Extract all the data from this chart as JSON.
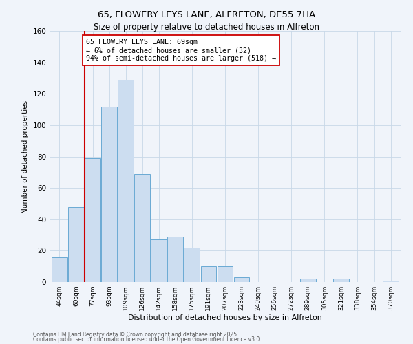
{
  "title": "65, FLOWERY LEYS LANE, ALFRETON, DE55 7HA",
  "subtitle": "Size of property relative to detached houses in Alfreton",
  "xlabel": "Distribution of detached houses by size in Alfreton",
  "ylabel": "Number of detached properties",
  "bar_labels": [
    "44sqm",
    "60sqm",
    "77sqm",
    "93sqm",
    "109sqm",
    "126sqm",
    "142sqm",
    "158sqm",
    "175sqm",
    "191sqm",
    "207sqm",
    "223sqm",
    "240sqm",
    "256sqm",
    "272sqm",
    "289sqm",
    "305sqm",
    "321sqm",
    "338sqm",
    "354sqm",
    "370sqm"
  ],
  "bar_values": [
    16,
    48,
    79,
    112,
    129,
    69,
    27,
    29,
    22,
    10,
    10,
    3,
    0,
    0,
    0,
    2,
    0,
    2,
    0,
    0,
    1
  ],
  "bar_color": "#ccddf0",
  "bar_edge_color": "#6aaad4",
  "vline_x": 1.5,
  "vline_color": "#cc0000",
  "annotation_line1": "65 FLOWERY LEYS LANE: 69sqm",
  "annotation_line2": "← 6% of detached houses are smaller (32)",
  "annotation_line3": "94% of semi-detached houses are larger (518) →",
  "annotation_box_color": "#ffffff",
  "annotation_box_edge": "#cc0000",
  "ylim": [
    0,
    160
  ],
  "yticks": [
    0,
    20,
    40,
    60,
    80,
    100,
    120,
    140,
    160
  ],
  "footnote1": "Contains HM Land Registry data © Crown copyright and database right 2025.",
  "footnote2": "Contains public sector information licensed under the Open Government Licence v3.0.",
  "bg_color": "#f0f4fa"
}
